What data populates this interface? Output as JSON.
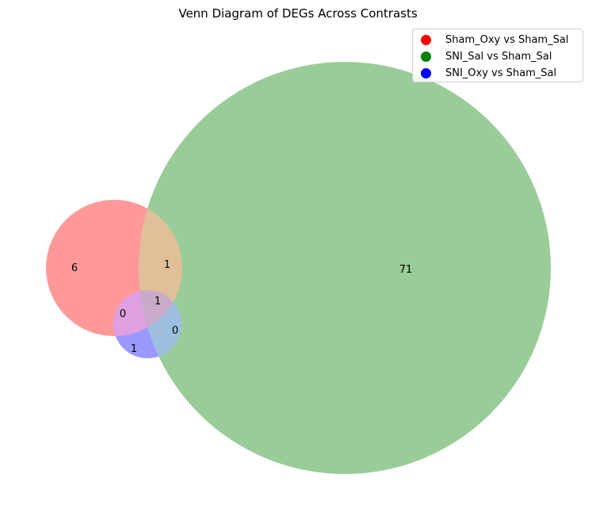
{
  "chart_data": {
    "type": "venn",
    "title": "Venn Diagram of DEGs Across Contrasts",
    "sets": [
      {
        "name": "Sham_Oxy vs Sham_Sal",
        "color": "#ff0000",
        "fill": "#ff9999"
      },
      {
        "name": "SNI_Sal vs Sham_Sal",
        "color": "#008000",
        "fill": "#99cc99"
      },
      {
        "name": "SNI_Oxy vs Sham_Sal",
        "color": "#0000ff",
        "fill": "#9999ff"
      }
    ],
    "regions": [
      {
        "sets": [
          "Sham_Oxy vs Sham_Sal"
        ],
        "value": 6
      },
      {
        "sets": [
          "SNI_Sal vs Sham_Sal"
        ],
        "value": 71
      },
      {
        "sets": [
          "SNI_Oxy vs Sham_Sal"
        ],
        "value": 1
      },
      {
        "sets": [
          "Sham_Oxy vs Sham_Sal",
          "SNI_Sal vs Sham_Sal"
        ],
        "value": 1
      },
      {
        "sets": [
          "Sham_Oxy vs Sham_Sal",
          "SNI_Oxy vs Sham_Sal"
        ],
        "value": 0
      },
      {
        "sets": [
          "SNI_Sal vs Sham_Sal",
          "SNI_Oxy vs Sham_Sal"
        ],
        "value": 0
      },
      {
        "sets": [
          "Sham_Oxy vs Sham_Sal",
          "SNI_Sal vs Sham_Sal",
          "SNI_Oxy vs Sham_Sal"
        ],
        "value": 1
      }
    ],
    "legend_position": "top-right"
  }
}
